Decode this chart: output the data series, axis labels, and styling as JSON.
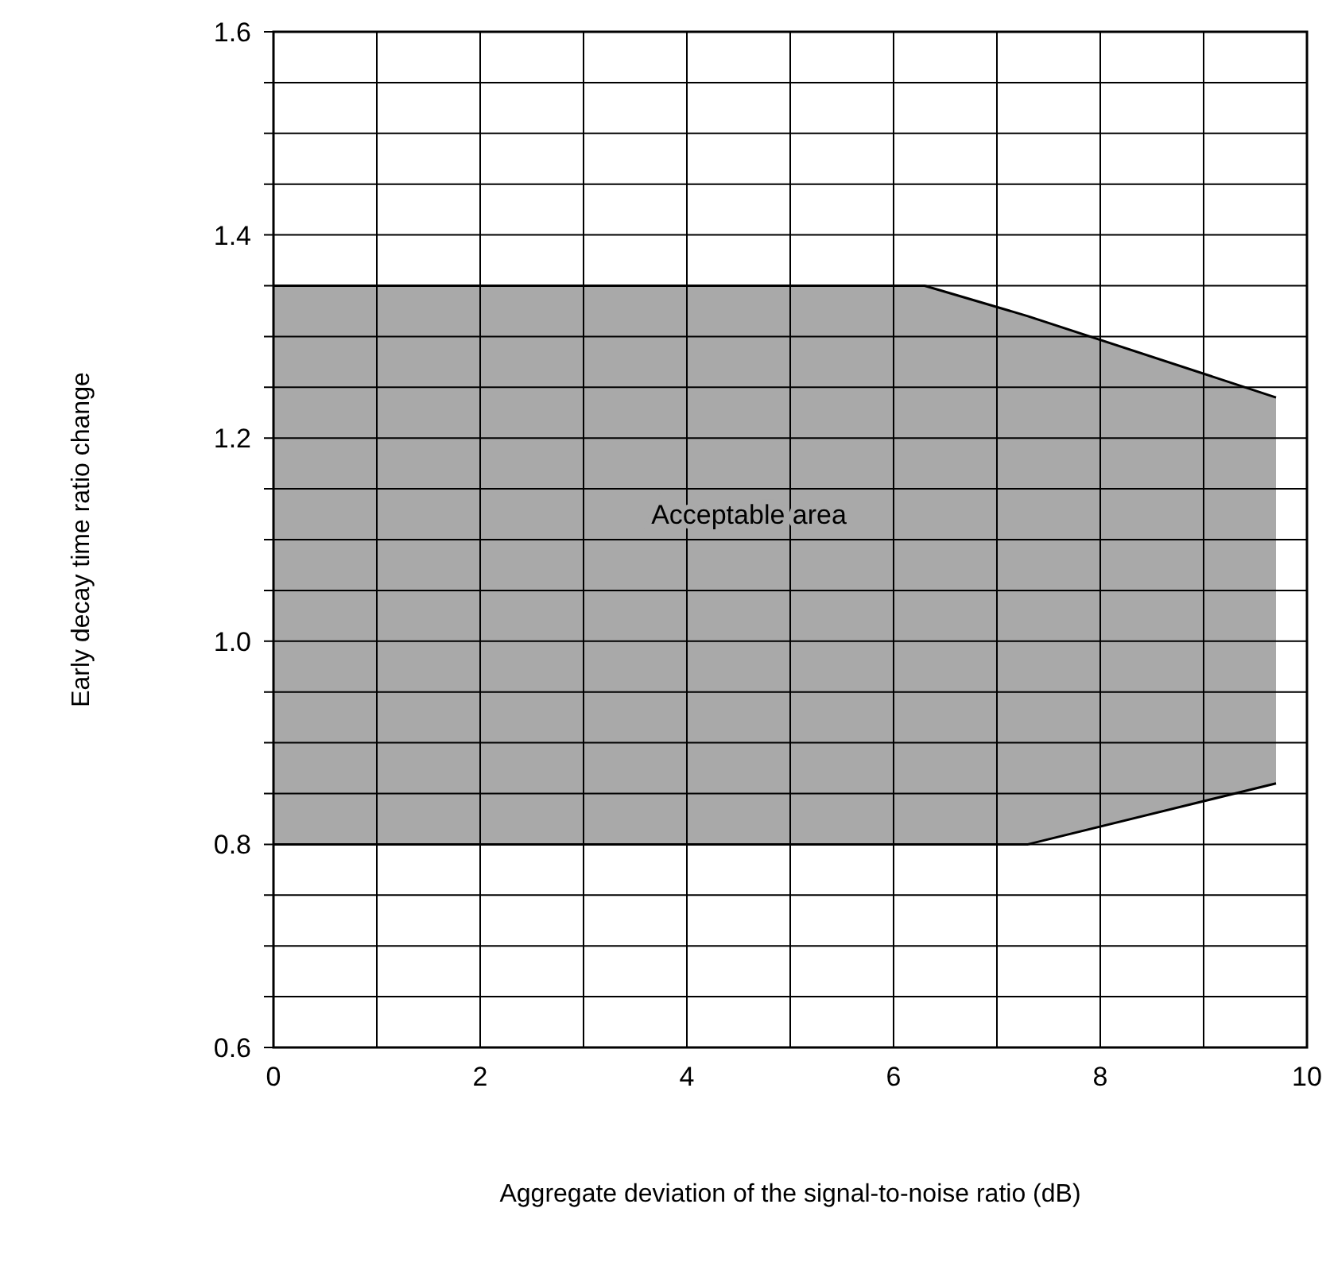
{
  "chart_data": {
    "type": "area",
    "xlabel": "Aggregate deviation of the signal-to-noise ratio (dB)",
    "ylabel": "Early decay time ratio change",
    "series": [
      {
        "type": "area",
        "color": "#a9a9a9",
        "x": [
          0,
          6.3,
          7.3,
          9.7
        ],
        "values": [
          1.35,
          1.35,
          1.32,
          1.24
        ]
      },
      {
        "color": "#ffffff",
        "x": [
          0,
          7.3,
          9.7
        ],
        "values": [
          0.8,
          0.8,
          0.86
        ]
      }
    ],
    "annotations": [
      "Acceptable area"
    ],
    "xlim": [
      0,
      10
    ],
    "ylim": [
      0.6,
      1.6
    ],
    "xticks": [
      0,
      {
        "value": 1,
        "label": null
      },
      2,
      {
        "value": 3,
        "label": null
      },
      4,
      {
        "value": 5,
        "label": null
      },
      6,
      {
        "value": 7,
        "label": null
      },
      8,
      {
        "value": 9,
        "label": null
      },
      10
    ],
    "yticks": [
      0.6,
      {
        "value": 0.65,
        "label": null
      },
      {
        "value": 0.7,
        "label": null
      },
      {
        "value": 0.75,
        "label": null
      },
      0.8,
      {
        "value": 0.85,
        "label": null
      },
      {
        "value": 0.9,
        "label": null
      },
      {
        "value": 0.95,
        "label": null
      },
      {
        "value": 1,
        "label": "1.0"
      },
      {
        "value": 1.05,
        "label": null
      },
      {
        "value": 1.1,
        "label": null
      },
      {
        "value": 1.15,
        "label": null
      },
      1.2,
      {
        "value": 1.25,
        "label": null
      },
      {
        "value": 1.3,
        "label": null
      },
      {
        "value": 1.35,
        "label": null
      },
      1.4,
      {
        "value": 1.45,
        "label": null
      },
      {
        "value": 1.5,
        "label": null
      },
      {
        "value": 1.55,
        "label": null
      },
      1.6
    ],
    "grid": true
  }
}
